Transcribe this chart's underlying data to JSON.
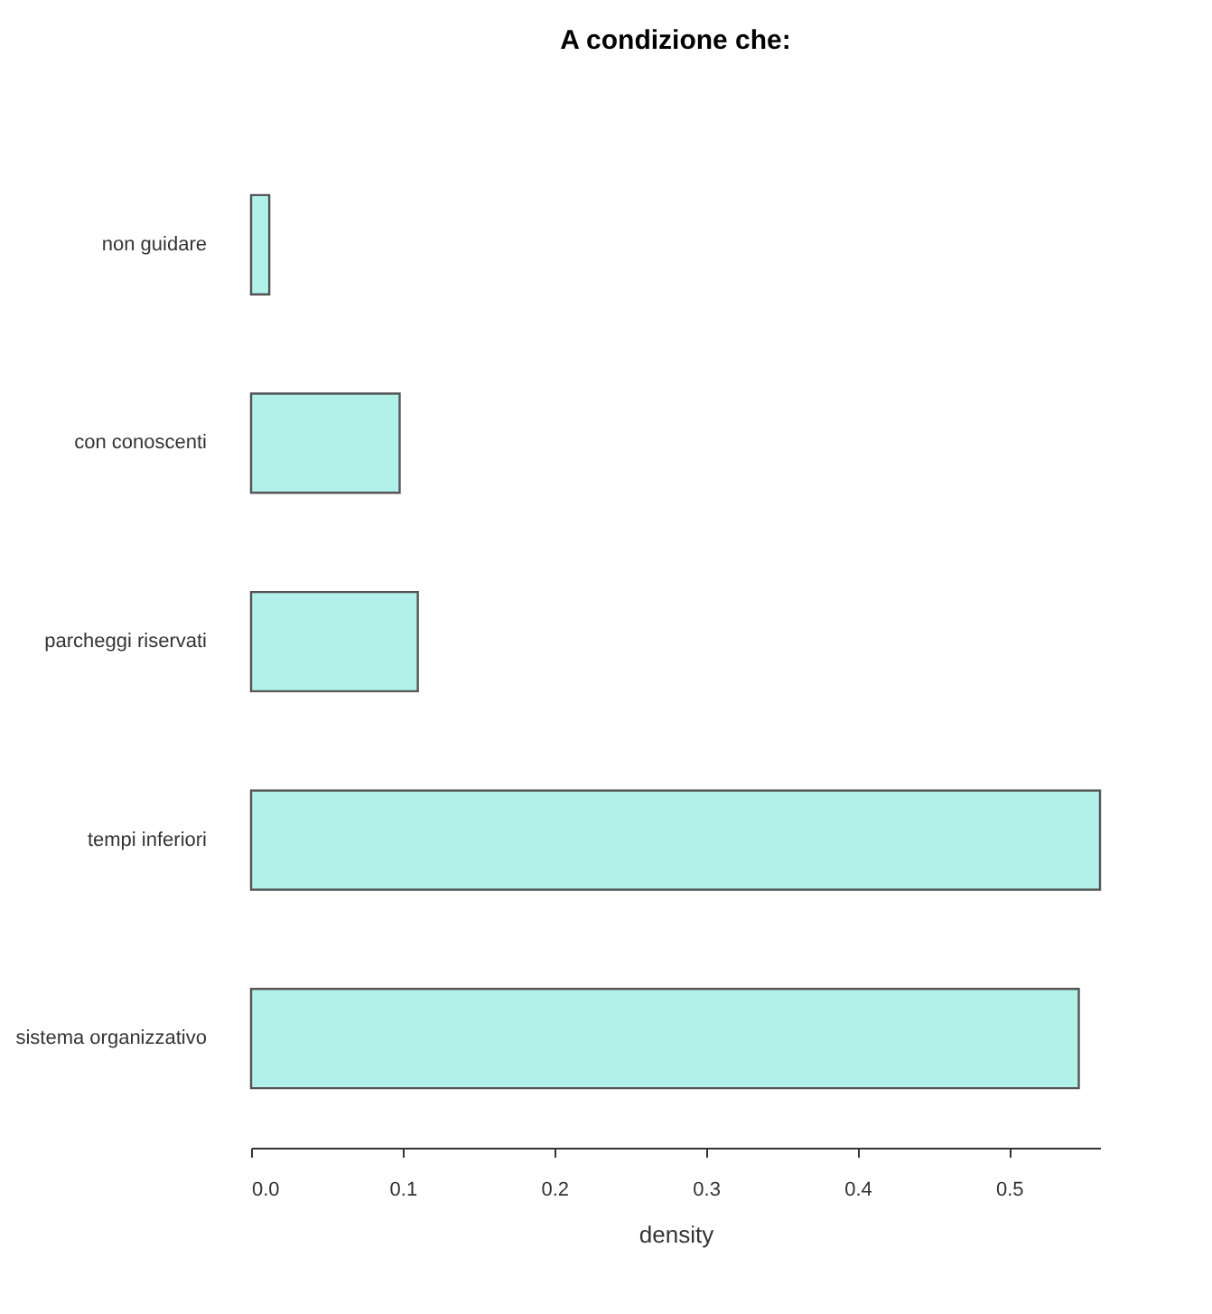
{
  "chart_data": {
    "type": "bar",
    "orientation": "horizontal",
    "title": "A condizione che:",
    "xlabel": "density",
    "categories": [
      "non guidare",
      "con conoscenti",
      "parcheggi riservati",
      "tempi inferiori",
      "sistema organizzativo"
    ],
    "values": [
      0.012,
      0.098,
      0.11,
      0.56,
      0.546
    ],
    "color": "#b2f0ea",
    "xlim": [
      0,
      0.56
    ],
    "xticks": [
      {
        "value": 0,
        "label": "0.0"
      },
      0.1,
      0.2,
      0.3,
      0.4,
      0.5
    ],
    "grid": false
  }
}
